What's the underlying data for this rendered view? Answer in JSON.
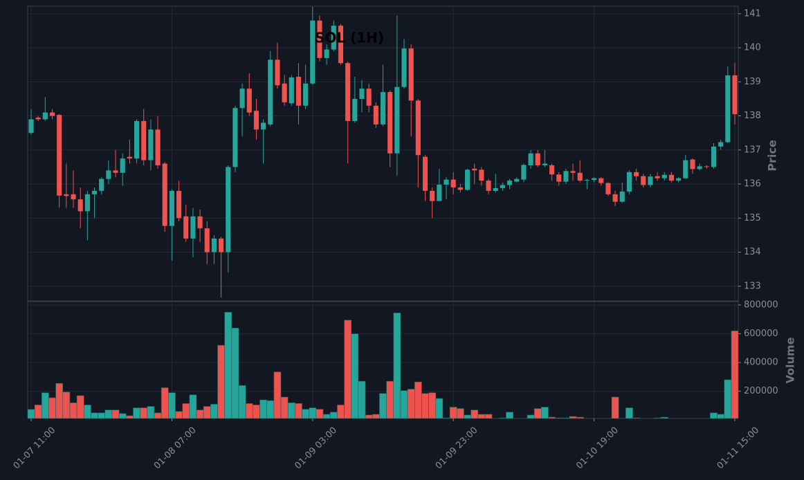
{
  "chart_data": {
    "type": "candlestick",
    "title": "SOL (1H)",
    "y_label": "Price",
    "volume_label": "Volume",
    "up_color": "#26a69a",
    "down_color": "#ef5350",
    "grid": true,
    "ylim": [
      132.57,
      141.22
    ],
    "yticks": [
      133,
      134,
      135,
      136,
      137,
      138,
      139,
      140,
      141
    ],
    "volume_ylim": [
      11000,
      824000
    ],
    "volume_yticks": [
      200000,
      400000,
      600000,
      800000
    ],
    "categories": [
      "01-07 11:00",
      null,
      null,
      null,
      null,
      null,
      null,
      null,
      null,
      null,
      null,
      null,
      null,
      null,
      null,
      null,
      null,
      null,
      null,
      null,
      "01-08 07:00",
      null,
      null,
      null,
      null,
      null,
      null,
      null,
      null,
      null,
      null,
      null,
      null,
      null,
      null,
      null,
      null,
      null,
      null,
      null,
      "01-09 03:00",
      null,
      null,
      null,
      null,
      null,
      null,
      null,
      null,
      null,
      null,
      null,
      null,
      null,
      null,
      null,
      null,
      null,
      null,
      null,
      "01-09 23:00",
      null,
      null,
      null,
      null,
      null,
      null,
      null,
      null,
      null,
      null,
      null,
      null,
      null,
      null,
      null,
      null,
      null,
      null,
      null,
      "01-10 19:00",
      null,
      null,
      null,
      null,
      null,
      null,
      null,
      null,
      null,
      null,
      null,
      null,
      null,
      null,
      null,
      null,
      null,
      null,
      null,
      "01-11 15:00"
    ],
    "open": [
      137.5,
      137.95,
      137.9,
      138.1,
      138.03,
      135.7,
      135.7,
      135.55,
      135.2,
      135.7,
      135.8,
      136.15,
      136.4,
      136.33,
      136.8,
      136.75,
      137.85,
      136.7,
      137.6,
      136.6,
      134.77,
      135.8,
      135.05,
      134.4,
      135.05,
      134.7,
      134.0,
      134.4,
      134.0,
      136.5,
      138.23,
      138.8,
      138.15,
      137.6,
      137.75,
      139.65,
      138.95,
      138.37,
      139.15,
      138.3,
      138.95,
      140.8,
      139.7,
      139.95,
      140.65,
      139.55,
      137.85,
      138.5,
      138.8,
      138.3,
      137.75,
      138.7,
      136.9,
      138.85,
      139.98,
      138.45,
      136.8,
      135.8,
      135.5,
      135.98,
      136.13,
      135.9,
      135.83,
      136.45,
      136.42,
      136.1,
      135.8,
      135.88,
      135.97,
      136.07,
      136.13,
      136.55,
      136.9,
      136.55,
      136.55,
      136.28,
      136.07,
      136.38,
      136.33,
      136.1,
      136.12,
      136.17,
      136.03,
      135.7,
      135.48,
      135.78,
      136.35,
      136.23,
      135.97,
      136.23,
      136.17,
      136.27,
      136.1,
      136.17,
      136.72,
      136.44,
      136.52,
      136.5,
      137.1,
      137.23,
      139.19
    ],
    "high": [
      138.2,
      138.0,
      138.55,
      138.2,
      138.05,
      136.6,
      136.4,
      135.9,
      135.8,
      135.9,
      136.2,
      136.7,
      137.0,
      136.9,
      137.3,
      137.9,
      138.2,
      137.9,
      138.0,
      136.65,
      135.85,
      136.1,
      135.4,
      135.3,
      135.25,
      134.9,
      134.5,
      134.45,
      136.55,
      138.3,
      138.95,
      139.25,
      138.5,
      137.9,
      139.9,
      140.15,
      139.2,
      139.2,
      139.55,
      139.5,
      141.2,
      140.95,
      140.1,
      140.8,
      140.7,
      139.6,
      139.15,
      139.05,
      138.95,
      138.4,
      139.5,
      138.75,
      140.95,
      140.25,
      140.1,
      138.5,
      136.85,
      135.9,
      136.45,
      136.2,
      136.35,
      136.0,
      136.45,
      136.6,
      136.5,
      136.15,
      136.3,
      136.05,
      136.15,
      136.2,
      136.6,
      137.0,
      137.0,
      137.0,
      136.6,
      136.35,
      136.45,
      136.6,
      136.7,
      136.15,
      136.2,
      136.2,
      136.05,
      135.8,
      136.05,
      136.4,
      136.45,
      136.3,
      136.3,
      136.35,
      136.35,
      136.35,
      136.2,
      136.85,
      136.75,
      136.6,
      136.55,
      137.2,
      137.3,
      139.45,
      139.55
    ],
    "low": [
      137.45,
      137.85,
      137.85,
      137.9,
      135.3,
      135.3,
      135.3,
      134.7,
      134.35,
      135.0,
      135.7,
      136.0,
      136.2,
      135.95,
      136.6,
      136.6,
      136.55,
      136.4,
      136.45,
      134.6,
      133.75,
      134.9,
      134.3,
      133.85,
      134.3,
      133.65,
      133.65,
      132.67,
      133.4,
      136.35,
      137.4,
      138.0,
      137.3,
      136.6,
      137.7,
      138.8,
      138.3,
      138.3,
      137.75,
      138.2,
      138.9,
      139.6,
      139.5,
      139.9,
      139.5,
      136.6,
      137.8,
      138.1,
      138.1,
      137.65,
      137.7,
      136.5,
      136.25,
      138.8,
      137.4,
      135.9,
      135.5,
      135.0,
      135.5,
      135.55,
      135.7,
      135.75,
      135.8,
      136.0,
      135.95,
      135.7,
      135.75,
      135.8,
      135.85,
      136.05,
      136.05,
      136.45,
      136.5,
      136.5,
      136.1,
      135.95,
      136.0,
      136.1,
      136.05,
      135.85,
      136.05,
      135.95,
      135.65,
      135.35,
      135.45,
      135.7,
      136.1,
      135.9,
      135.9,
      136.1,
      136.1,
      136.05,
      136.05,
      136.15,
      136.3,
      136.4,
      136.45,
      136.45,
      137.0,
      137.2,
      137.75
    ],
    "close": [
      137.9,
      137.9,
      138.1,
      138.0,
      135.66,
      135.65,
      135.55,
      135.2,
      135.7,
      135.8,
      136.15,
      136.4,
      136.33,
      136.75,
      136.75,
      137.85,
      136.7,
      137.6,
      136.55,
      134.77,
      135.8,
      135.0,
      134.4,
      135.05,
      134.7,
      134.0,
      134.4,
      134.0,
      136.5,
      138.23,
      138.8,
      138.1,
      137.6,
      137.8,
      139.65,
      138.9,
      138.4,
      139.13,
      138.3,
      138.95,
      140.8,
      139.7,
      139.95,
      140.65,
      139.55,
      137.85,
      138.5,
      138.8,
      138.3,
      137.75,
      138.7,
      136.9,
      138.85,
      139.98,
      138.45,
      136.85,
      135.8,
      135.5,
      135.98,
      136.13,
      135.9,
      135.83,
      136.42,
      136.4,
      136.1,
      135.8,
      135.88,
      135.97,
      136.1,
      136.15,
      136.56,
      136.9,
      136.55,
      136.6,
      136.28,
      136.07,
      136.38,
      136.33,
      136.1,
      136.12,
      136.17,
      136.03,
      135.7,
      135.48,
      135.78,
      136.35,
      136.23,
      135.97,
      136.22,
      136.17,
      136.27,
      136.1,
      136.17,
      136.7,
      136.44,
      136.52,
      136.5,
      137.1,
      137.23,
      139.19,
      138.05
    ],
    "volume": [
      74000,
      105000,
      190000,
      155000,
      255000,
      195000,
      120000,
      170000,
      105000,
      50000,
      50000,
      70000,
      70000,
      45000,
      30000,
      85000,
      85000,
      95000,
      50000,
      225000,
      190000,
      60000,
      115000,
      175000,
      70000,
      95000,
      110000,
      520000,
      750000,
      640000,
      240000,
      115000,
      105000,
      140000,
      135000,
      335000,
      160000,
      120000,
      115000,
      75000,
      85000,
      75000,
      40000,
      55000,
      105000,
      695000,
      600000,
      270000,
      35000,
      40000,
      185000,
      270000,
      745000,
      205000,
      215000,
      265000,
      185000,
      190000,
      150000,
      15000,
      90000,
      80000,
      35000,
      70000,
      40000,
      40000,
      10000,
      15000,
      55000,
      10000,
      10000,
      35000,
      80000,
      90000,
      20000,
      15000,
      15000,
      25000,
      20000,
      10000,
      10000,
      5000,
      10000,
      160000,
      10000,
      85000,
      15000,
      5000,
      5000,
      15000,
      20000,
      5000,
      5000,
      5000,
      10000,
      5000,
      5000,
      50000,
      40000,
      280000,
      620000
    ]
  }
}
